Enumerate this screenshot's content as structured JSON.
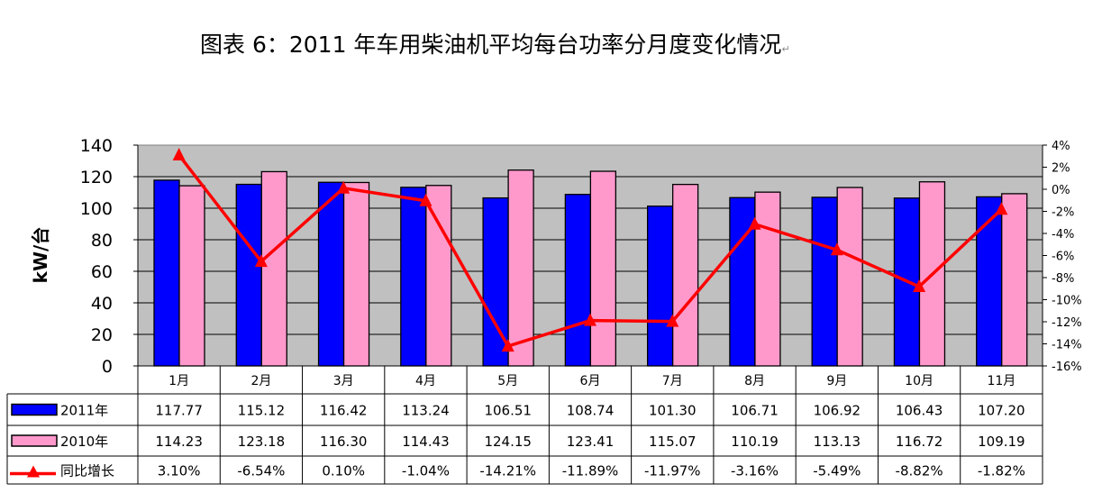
{
  "chart_data": {
    "type": "bar",
    "title": "图表 6：2011 年车用柴油机平均每台功率分月度变化情况",
    "return_mark": "↵",
    "ylabel": "kW/台",
    "ylim": [
      0,
      140
    ],
    "yticks": [
      "0",
      "20",
      "40",
      "60",
      "80",
      "100",
      "120",
      "140"
    ],
    "y2lim": [
      -16,
      4
    ],
    "y2ticks": [
      "-16%",
      "-14%",
      "-12%",
      "-10%",
      "-8%",
      "-6%",
      "-4%",
      "-2%",
      "0%",
      "2%",
      "4%"
    ],
    "grid": true,
    "categories": [
      "1月",
      "2月",
      "3月",
      "4月",
      "5月",
      "6月",
      "7月",
      "8月",
      "9月",
      "10月",
      "11月"
    ],
    "series": [
      {
        "name": "2011年",
        "type": "bar",
        "color": "#0000ff",
        "values": [
          117.77,
          115.12,
          116.42,
          113.24,
          106.51,
          108.74,
          101.3,
          106.71,
          106.92,
          106.43,
          107.2
        ],
        "labels": [
          "117.77",
          "115.12",
          "116.42",
          "113.24",
          "106.51",
          "108.74",
          "101.30",
          "106.71",
          "106.92",
          "106.43",
          "107.20"
        ]
      },
      {
        "name": "2010年",
        "type": "bar",
        "color": "#ff99cc",
        "values": [
          114.23,
          123.18,
          116.3,
          114.43,
          124.15,
          123.41,
          115.07,
          110.19,
          113.13,
          116.72,
          109.19
        ],
        "labels": [
          "114.23",
          "123.18",
          "116.30",
          "114.43",
          "124.15",
          "123.41",
          "115.07",
          "110.19",
          "113.13",
          "116.72",
          "109.19"
        ]
      },
      {
        "name": "同比增长",
        "type": "line",
        "axis": "right",
        "color": "#ff0000",
        "values": [
          3.1,
          -6.54,
          0.1,
          -1.04,
          -14.21,
          -11.89,
          -11.97,
          -3.16,
          -5.49,
          -8.82,
          -1.82
        ],
        "labels": [
          "3.10%",
          "-6.54%",
          "0.10%",
          "-1.04%",
          "-14.21%",
          "-11.89%",
          "-11.97%",
          "-3.16%",
          "-5.49%",
          "-8.82%",
          "-1.82%"
        ]
      }
    ],
    "legend": "data-table-bottom"
  }
}
